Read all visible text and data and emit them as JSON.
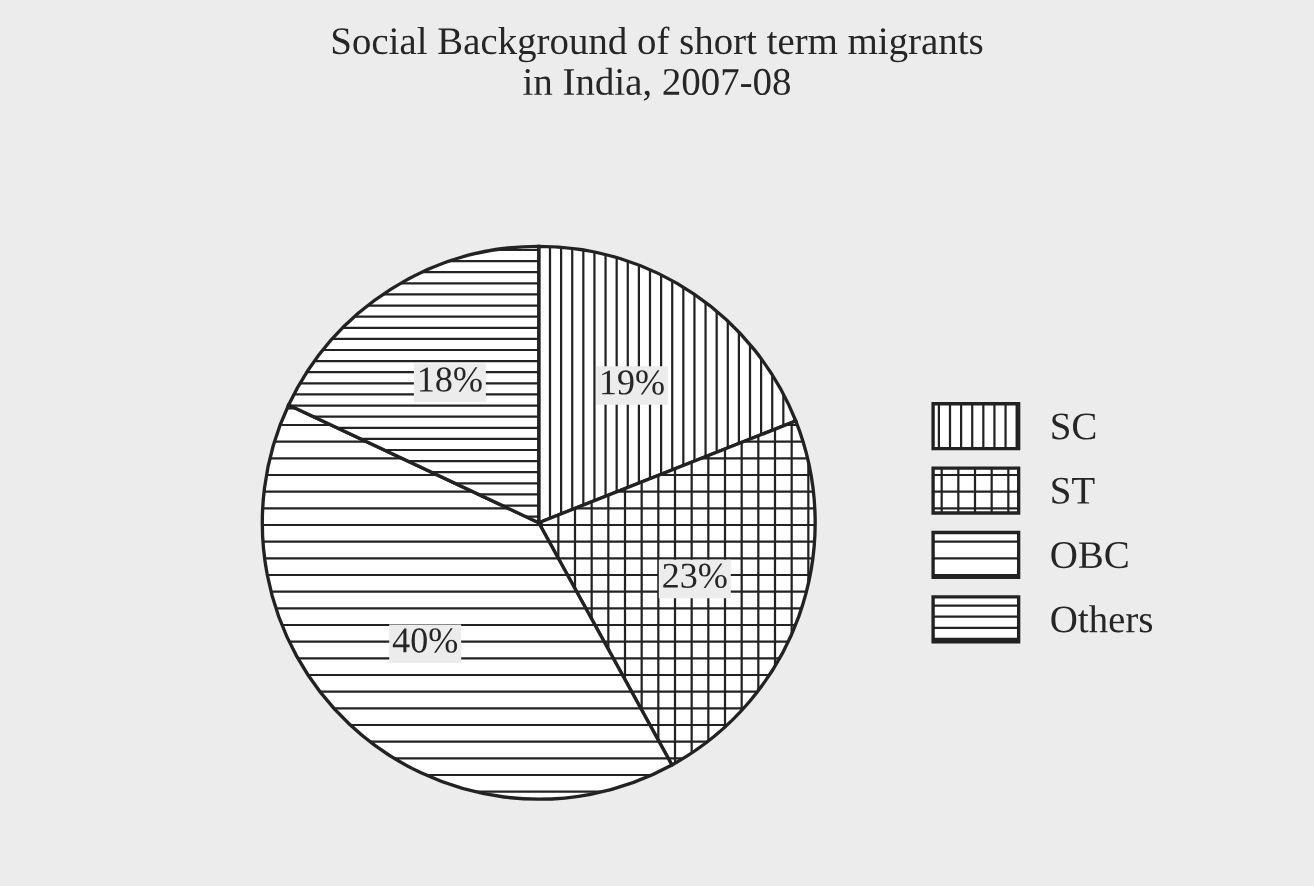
{
  "chart_data": {
    "type": "pie",
    "title": "Social Background of short term migrants\nin India, 2007-08",
    "categories": [
      "SC",
      "ST",
      "OBC",
      "Others"
    ],
    "values": [
      19,
      23,
      40,
      18
    ],
    "colors": [
      "#222222",
      "#222222",
      "#222222",
      "#222222"
    ],
    "value_labels": [
      "19%",
      "23%",
      "40%",
      "18%"
    ],
    "legend": "right"
  }
}
